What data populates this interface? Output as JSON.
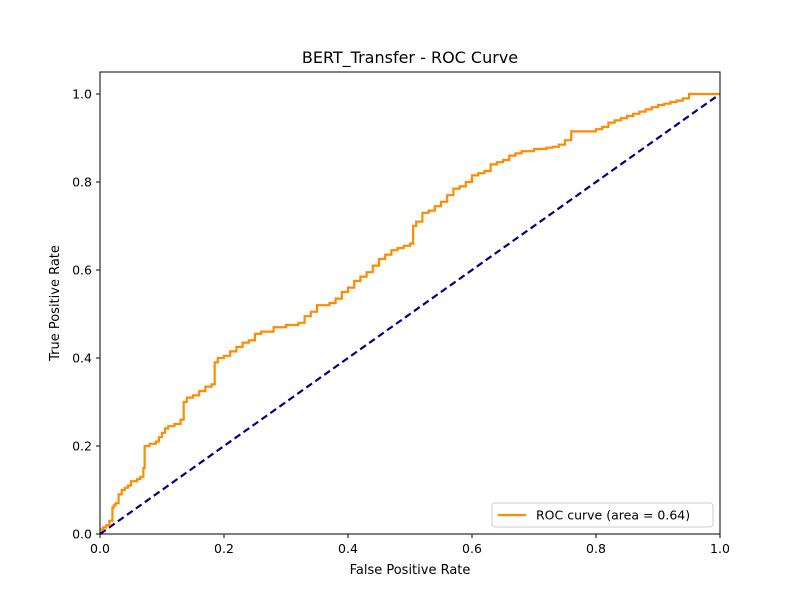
{
  "chart_data": {
    "type": "line",
    "title": "BERT_Transfer - ROC Curve",
    "xlabel": "False Positive Rate",
    "ylabel": "True Positive Rate",
    "xlim": [
      0.0,
      1.0
    ],
    "ylim": [
      0.0,
      1.05
    ],
    "xticks": [
      0.0,
      0.2,
      0.4,
      0.6,
      0.8,
      1.0
    ],
    "yticks": [
      0.0,
      0.2,
      0.4,
      0.6,
      0.8,
      1.0
    ],
    "xtick_labels": [
      "0.0",
      "0.2",
      "0.4",
      "0.6",
      "0.8",
      "1.0"
    ],
    "ytick_labels": [
      "0.0",
      "0.2",
      "0.4",
      "0.6",
      "0.8",
      "1.0"
    ],
    "grid": false,
    "legend_position": "lower-right",
    "series": [
      {
        "name": "ROC curve (area = 0.64)",
        "color": "#ff8c00",
        "style": "step",
        "x": [
          0.0,
          0.005,
          0.01,
          0.015,
          0.02,
          0.022,
          0.025,
          0.03,
          0.035,
          0.04,
          0.045,
          0.05,
          0.06,
          0.065,
          0.07,
          0.072,
          0.075,
          0.08,
          0.09,
          0.095,
          0.1,
          0.105,
          0.11,
          0.12,
          0.13,
          0.135,
          0.14,
          0.15,
          0.16,
          0.17,
          0.18,
          0.185,
          0.19,
          0.2,
          0.21,
          0.22,
          0.23,
          0.24,
          0.25,
          0.26,
          0.28,
          0.3,
          0.32,
          0.33,
          0.34,
          0.35,
          0.37,
          0.38,
          0.39,
          0.4,
          0.41,
          0.42,
          0.43,
          0.44,
          0.45,
          0.46,
          0.47,
          0.48,
          0.49,
          0.5,
          0.505,
          0.51,
          0.52,
          0.53,
          0.54,
          0.55,
          0.56,
          0.57,
          0.58,
          0.59,
          0.6,
          0.61,
          0.62,
          0.63,
          0.64,
          0.65,
          0.66,
          0.67,
          0.68,
          0.7,
          0.72,
          0.73,
          0.74,
          0.75,
          0.76,
          0.8,
          0.81,
          0.82,
          0.83,
          0.84,
          0.85,
          0.86,
          0.87,
          0.88,
          0.89,
          0.9,
          0.91,
          0.92,
          0.93,
          0.94,
          0.95,
          0.96,
          1.0
        ],
        "y": [
          0.01,
          0.015,
          0.02,
          0.03,
          0.06,
          0.065,
          0.07,
          0.09,
          0.1,
          0.105,
          0.11,
          0.12,
          0.125,
          0.13,
          0.15,
          0.2,
          0.2,
          0.205,
          0.21,
          0.22,
          0.23,
          0.24,
          0.245,
          0.25,
          0.26,
          0.3,
          0.31,
          0.315,
          0.325,
          0.335,
          0.34,
          0.39,
          0.4,
          0.405,
          0.415,
          0.425,
          0.435,
          0.44,
          0.455,
          0.46,
          0.47,
          0.475,
          0.48,
          0.495,
          0.505,
          0.52,
          0.525,
          0.535,
          0.55,
          0.56,
          0.575,
          0.585,
          0.595,
          0.61,
          0.625,
          0.635,
          0.645,
          0.65,
          0.655,
          0.66,
          0.7,
          0.71,
          0.73,
          0.735,
          0.745,
          0.755,
          0.77,
          0.785,
          0.79,
          0.8,
          0.815,
          0.82,
          0.825,
          0.84,
          0.845,
          0.85,
          0.86,
          0.865,
          0.87,
          0.875,
          0.878,
          0.88,
          0.885,
          0.895,
          0.915,
          0.92,
          0.925,
          0.935,
          0.94,
          0.945,
          0.95,
          0.955,
          0.96,
          0.965,
          0.97,
          0.975,
          0.978,
          0.982,
          0.985,
          0.99,
          1.0,
          1.0,
          1.0
        ]
      },
      {
        "name": "",
        "color": "#000080",
        "style": "dashed",
        "x": [
          0.0,
          1.0
        ],
        "y": [
          0.0,
          1.0
        ]
      }
    ]
  }
}
